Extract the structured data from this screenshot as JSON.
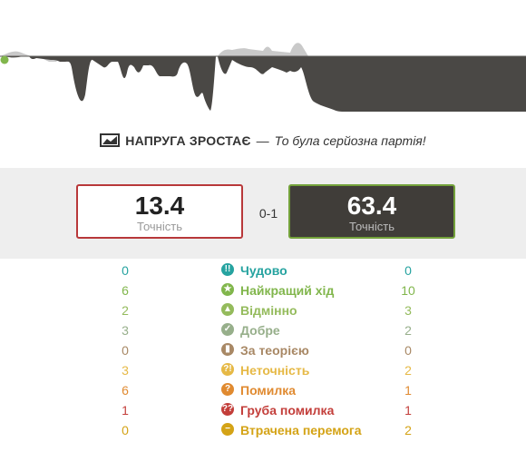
{
  "banner": {
    "title": "НАПРУГА ЗРОСТАЄ",
    "dash": "—",
    "subtitle": "То була серйозна партія!"
  },
  "score": {
    "white_accuracy": "13.4",
    "black_accuracy": "63.4",
    "accuracy_label": "Точність",
    "result": "0-1"
  },
  "colors": {
    "white_border": "#b8383a",
    "black_box": "#403d39",
    "black_border": "#73a13a",
    "graph_dark": "#4a4845",
    "graph_light": "#c9c9c9"
  },
  "stats": [
    {
      "label": "Чудово",
      "white": "0",
      "black": "0",
      "color": "#26a3a0",
      "icon": "double-exclamation-icon",
      "glyph": "!!"
    },
    {
      "label": "Найкращий хід",
      "white": "6",
      "black": "10",
      "color": "#81b64c",
      "icon": "star-icon",
      "glyph": "★"
    },
    {
      "label": "Відмінно",
      "white": "2",
      "black": "3",
      "color": "#94bb5c",
      "icon": "thumbs-up-icon",
      "glyph": "👍"
    },
    {
      "label": "Добре",
      "white": "3",
      "black": "2",
      "color": "#97af8b",
      "icon": "checkmark-icon",
      "glyph": "✓"
    },
    {
      "label": "За теорією",
      "white": "0",
      "black": "0",
      "color": "#a88865",
      "icon": "book-icon",
      "glyph": "▮▮"
    },
    {
      "label": "Неточність",
      "white": "3",
      "black": "2",
      "color": "#e6b946",
      "icon": "inaccuracy-icon",
      "glyph": "?!"
    },
    {
      "label": "Помилка",
      "white": "6",
      "black": "1",
      "color": "#e08a30",
      "icon": "question-icon",
      "glyph": "?"
    },
    {
      "label": "Груба помилка",
      "white": "1",
      "black": "1",
      "color": "#c33e3a",
      "icon": "double-question-icon",
      "glyph": "??"
    },
    {
      "label": "Втрачена перемога",
      "white": "0",
      "black": "2",
      "color": "#d4a316",
      "icon": "minus-icon",
      "glyph": "−"
    }
  ]
}
